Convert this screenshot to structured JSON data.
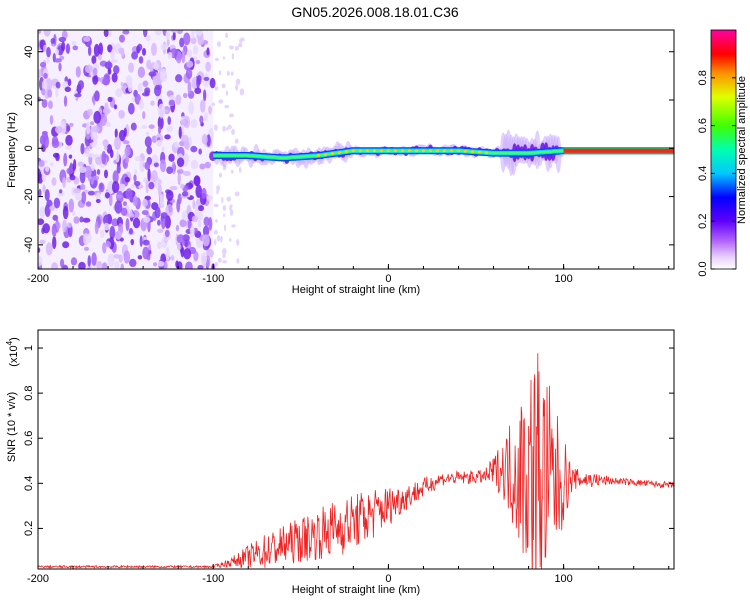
{
  "title": "GN05.2026.008.18.01.C36",
  "chart_data": [
    {
      "type": "heatmap",
      "xlabel": "Height of straight line (km)",
      "ylabel": "Frequency (Hz)",
      "xlim": [
        -200,
        163
      ],
      "ylim": [
        -50,
        49
      ],
      "xticks": [
        "-200",
        "-100",
        "0",
        "100"
      ],
      "yticks": [
        "-40",
        "-20",
        "0",
        "20",
        "40"
      ],
      "noise_region_km": [
        -200,
        -100
      ],
      "signal_track": [
        {
          "x": -100,
          "f": -3
        },
        {
          "x": -80,
          "f": -3
        },
        {
          "x": -60,
          "f": -4
        },
        {
          "x": -40,
          "f": -3
        },
        {
          "x": -20,
          "f": -1
        },
        {
          "x": 0,
          "f": -1
        },
        {
          "x": 20,
          "f": -1
        },
        {
          "x": 40,
          "f": -1
        },
        {
          "x": 60,
          "f": -2
        },
        {
          "x": 80,
          "f": -2
        },
        {
          "x": 100,
          "f": -1
        },
        {
          "x": 163,
          "f": -1
        }
      ]
    },
    {
      "type": "colorbar",
      "label": "Normalized spectral amplitude",
      "ticks": [
        "0.0",
        "0.2",
        "0.4",
        "0.6",
        "0.8"
      ],
      "range": [
        0,
        1
      ]
    },
    {
      "type": "line",
      "xlabel": "Height of straight line (km)",
      "ylabel": "SNR (10 * v/v)",
      "multiplier_label": "(x10",
      "multiplier_exp": "4",
      "xlim": [
        -200,
        163
      ],
      "ylim": [
        0.02,
        1.08
      ],
      "xticks": [
        "-200",
        "-100",
        "0",
        "100"
      ],
      "yticks": [
        "0.2",
        "0.4",
        "0.6",
        "0.8",
        "1"
      ],
      "color": "#ee2222",
      "envelope": [
        {
          "x": -200,
          "base": 0.03,
          "amp": 0.005
        },
        {
          "x": -100,
          "base": 0.03,
          "amp": 0.005
        },
        {
          "x": -90,
          "base": 0.05,
          "amp": 0.02
        },
        {
          "x": -70,
          "base": 0.1,
          "amp": 0.08
        },
        {
          "x": -50,
          "base": 0.15,
          "amp": 0.1
        },
        {
          "x": -30,
          "base": 0.2,
          "amp": 0.13
        },
        {
          "x": -10,
          "base": 0.26,
          "amp": 0.12
        },
        {
          "x": 10,
          "base": 0.34,
          "amp": 0.06
        },
        {
          "x": 30,
          "base": 0.42,
          "amp": 0.03
        },
        {
          "x": 55,
          "base": 0.43,
          "amp": 0.03
        },
        {
          "x": 65,
          "base": 0.47,
          "amp": 0.12
        },
        {
          "x": 75,
          "base": 0.45,
          "amp": 0.35
        },
        {
          "x": 85,
          "base": 0.45,
          "amp": 0.6
        },
        {
          "x": 95,
          "base": 0.4,
          "amp": 0.35
        },
        {
          "x": 105,
          "base": 0.42,
          "amp": 0.05
        },
        {
          "x": 130,
          "base": 0.41,
          "amp": 0.015
        },
        {
          "x": 163,
          "base": 0.39,
          "amp": 0.015
        }
      ]
    }
  ]
}
